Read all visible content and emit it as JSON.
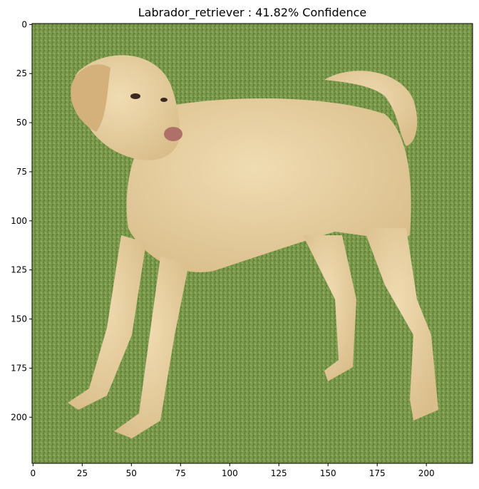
{
  "figure": {
    "title": "Labrador_retriever : 41.82% Confidence",
    "image_description_label": "dog-photo",
    "x_ticks": [
      "0",
      "25",
      "50",
      "75",
      "100",
      "125",
      "150",
      "175",
      "200"
    ],
    "y_ticks": [
      "0",
      "25",
      "50",
      "75",
      "100",
      "125",
      "150",
      "175",
      "200"
    ],
    "image_size": [
      224,
      224
    ],
    "colors": {
      "grass": "#7a9a4a",
      "dog": "#e6cfa0"
    }
  }
}
